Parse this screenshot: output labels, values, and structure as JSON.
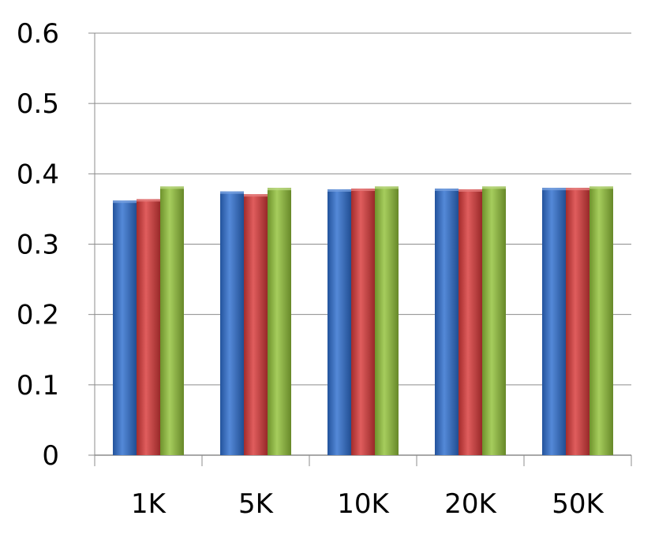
{
  "chart_data": {
    "type": "bar",
    "categories": [
      "1K",
      "5K",
      "10K",
      "20K",
      "50K"
    ],
    "series": [
      {
        "color": "#2f6fd0",
        "values": [
          0.362,
          0.375,
          0.378,
          0.379,
          0.38
        ]
      },
      {
        "color": "#d93a3a",
        "values": [
          0.364,
          0.371,
          0.379,
          0.378,
          0.38
        ]
      },
      {
        "color": "#93c23a",
        "values": [
          0.382,
          0.38,
          0.382,
          0.382,
          0.382
        ]
      }
    ],
    "ylim": [
      0,
      0.6
    ],
    "yticks": [
      0,
      0.1,
      0.2,
      0.3,
      0.4,
      0.5,
      0.6
    ],
    "ytick_labels": [
      "0",
      "0.1",
      "0.2",
      "0.3",
      "0.4",
      "0.5",
      "0.6"
    ],
    "grid": true,
    "title": "",
    "xlabel": "",
    "ylabel": ""
  }
}
